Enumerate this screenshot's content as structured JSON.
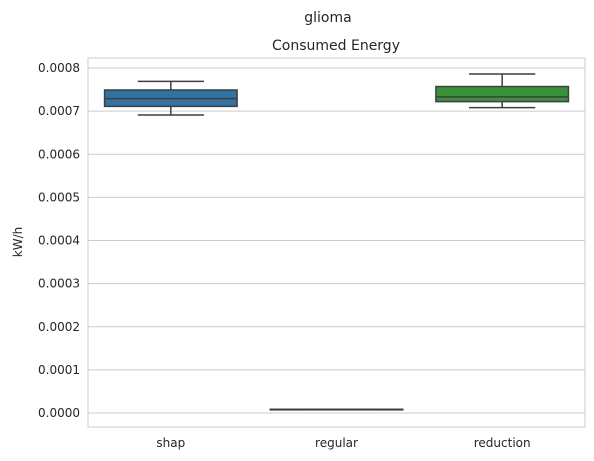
{
  "chart_data": {
    "type": "box",
    "suptitle": "glioma",
    "title": "Consumed Energy",
    "xlabel": "",
    "ylabel": "kW/h",
    "ylim": [
      -3e-05,
      0.00082
    ],
    "yticks": [
      "0.0000",
      "0.0001",
      "0.0002",
      "0.0003",
      "0.0004",
      "0.0005",
      "0.0006",
      "0.0007",
      "0.0008"
    ],
    "ytick_values": [
      0,
      0.0001,
      0.0002,
      0.0003,
      0.0004,
      0.0005,
      0.0006,
      0.0007,
      0.0008
    ],
    "grid": true,
    "categories": [
      "shap",
      "regular",
      "reduction"
    ],
    "boxes": [
      {
        "category": "shap",
        "color": "#3274a1",
        "whislo": 0.000691,
        "q1": 0.000711,
        "med": 0.000729,
        "q3": 0.000749,
        "whishi": 0.000769
      },
      {
        "category": "regular",
        "color": "#e1812c",
        "whislo": 8.5e-06,
        "q1": 8.5e-06,
        "med": 8.5e-06,
        "q3": 8.5e-06,
        "whishi": 8.5e-06
      },
      {
        "category": "reduction",
        "color": "#3a923a",
        "whislo": 0.000708,
        "q1": 0.000722,
        "med": 0.000733,
        "q3": 0.000757,
        "whishi": 0.000786
      }
    ]
  }
}
